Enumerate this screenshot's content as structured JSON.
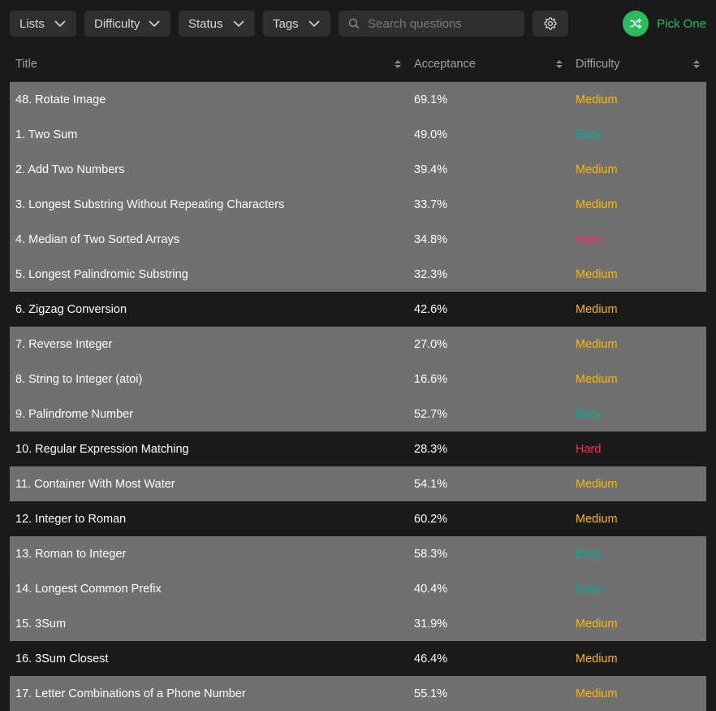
{
  "toolbar": {
    "filters": {
      "lists": "Lists",
      "difficulty": "Difficulty",
      "status": "Status",
      "tags": "Tags"
    },
    "search_placeholder": "Search questions",
    "pick_one_label": "Pick One",
    "accent_color": "#2cbb5d"
  },
  "table": {
    "headers": {
      "title": "Title",
      "acceptance": "Acceptance",
      "difficulty": "Difficulty"
    },
    "difficulty_colors": {
      "Easy": "#00af9b",
      "Medium": "#ffb800",
      "Hard": "#ff2d55"
    },
    "rows": [
      {
        "title": "48. Rotate Image",
        "acceptance": "69.1%",
        "difficulty": "Medium",
        "highlight": true
      },
      {
        "title": "1. Two Sum",
        "acceptance": "49.0%",
        "difficulty": "Easy",
        "highlight": true
      },
      {
        "title": "2. Add Two Numbers",
        "acceptance": "39.4%",
        "difficulty": "Medium",
        "highlight": true
      },
      {
        "title": "3. Longest Substring Without Repeating Characters",
        "acceptance": "33.7%",
        "difficulty": "Medium",
        "highlight": true
      },
      {
        "title": "4. Median of Two Sorted Arrays",
        "acceptance": "34.8%",
        "difficulty": "Hard",
        "highlight": true
      },
      {
        "title": "5. Longest Palindromic Substring",
        "acceptance": "32.3%",
        "difficulty": "Medium",
        "highlight": true
      },
      {
        "title": "6. Zigzag Conversion",
        "acceptance": "42.6%",
        "difficulty": "Medium",
        "highlight": false
      },
      {
        "title": "7. Reverse Integer",
        "acceptance": "27.0%",
        "difficulty": "Medium",
        "highlight": true
      },
      {
        "title": "8. String to Integer (atoi)",
        "acceptance": "16.6%",
        "difficulty": "Medium",
        "highlight": true
      },
      {
        "title": "9. Palindrome Number",
        "acceptance": "52.7%",
        "difficulty": "Easy",
        "highlight": true
      },
      {
        "title": "10. Regular Expression Matching",
        "acceptance": "28.3%",
        "difficulty": "Hard",
        "highlight": false
      },
      {
        "title": "11. Container With Most Water",
        "acceptance": "54.1%",
        "difficulty": "Medium",
        "highlight": true
      },
      {
        "title": "12. Integer to Roman",
        "acceptance": "60.2%",
        "difficulty": "Medium",
        "highlight": false
      },
      {
        "title": "13. Roman to Integer",
        "acceptance": "58.3%",
        "difficulty": "Easy",
        "highlight": true
      },
      {
        "title": "14. Longest Common Prefix",
        "acceptance": "40.4%",
        "difficulty": "Easy",
        "highlight": true
      },
      {
        "title": "15. 3Sum",
        "acceptance": "31.9%",
        "difficulty": "Medium",
        "highlight": true
      },
      {
        "title": "16. 3Sum Closest",
        "acceptance": "46.4%",
        "difficulty": "Medium",
        "highlight": false
      },
      {
        "title": "17. Letter Combinations of a Phone Number",
        "acceptance": "55.1%",
        "difficulty": "Medium",
        "highlight": true
      }
    ]
  }
}
